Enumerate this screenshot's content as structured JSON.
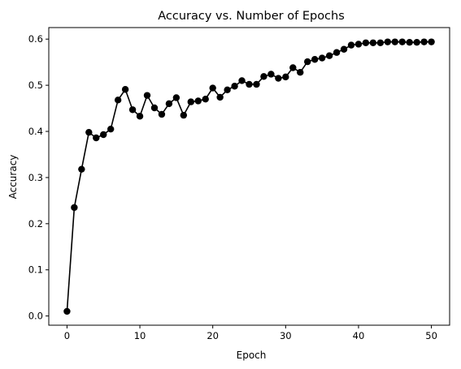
{
  "chart_data": {
    "type": "line",
    "title": "Accuracy vs. Number of Epochs",
    "xlabel": "Epoch",
    "ylabel": "Accuracy",
    "xlim": [
      -2.5,
      52.5
    ],
    "ylim": [
      -0.02,
      0.625
    ],
    "xticks": [
      0,
      10,
      20,
      30,
      40,
      50
    ],
    "yticks": [
      0.0,
      0.1,
      0.2,
      0.3,
      0.4,
      0.5,
      0.6
    ],
    "xtick_labels": [
      "0",
      "10",
      "20",
      "30",
      "40",
      "50"
    ],
    "ytick_labels": [
      "0.0",
      "0.1",
      "0.2",
      "0.3",
      "0.4",
      "0.5",
      "0.6"
    ],
    "grid": false,
    "line_color": "#000000",
    "marker": "circle",
    "series": [
      {
        "x": [
          0,
          1,
          2,
          3,
          4,
          5,
          6,
          7,
          8,
          9,
          10,
          11,
          12,
          13,
          14,
          15,
          16,
          17,
          18,
          19,
          20,
          21,
          22,
          23,
          24,
          25,
          26,
          27,
          28,
          29,
          30,
          31,
          32,
          33,
          34,
          35,
          36,
          37,
          38,
          39,
          40,
          41,
          42,
          43,
          44,
          45,
          46,
          47,
          48,
          49,
          50
        ],
        "values": [
          0.01,
          0.235,
          0.318,
          0.398,
          0.386,
          0.393,
          0.405,
          0.468,
          0.491,
          0.447,
          0.433,
          0.478,
          0.451,
          0.437,
          0.46,
          0.473,
          0.435,
          0.464,
          0.466,
          0.47,
          0.494,
          0.474,
          0.49,
          0.498,
          0.51,
          0.502,
          0.502,
          0.519,
          0.524,
          0.515,
          0.518,
          0.538,
          0.528,
          0.551,
          0.556,
          0.559,
          0.564,
          0.571,
          0.578,
          0.587,
          0.589,
          0.592,
          0.592,
          0.592,
          0.594,
          0.594,
          0.594,
          0.593,
          0.593,
          0.594,
          0.594
        ]
      }
    ]
  }
}
